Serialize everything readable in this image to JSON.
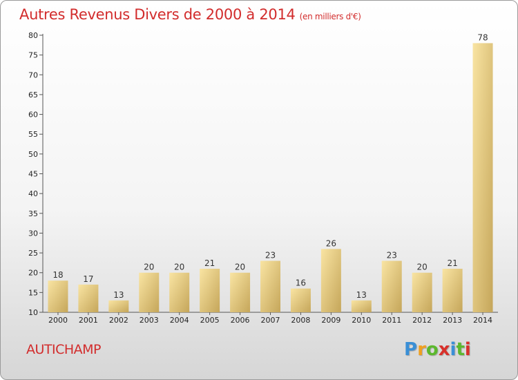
{
  "title": "Autres Revenus Divers de 2000 à 2014",
  "subtitle": "(en milliers d'€)",
  "commune": "AUTICHAMP",
  "logo": {
    "letters": [
      "P",
      "r",
      "o",
      "x",
      "i",
      "t",
      "i"
    ],
    "colors": [
      "#3a8fd6",
      "#f0a020",
      "#5cb82e",
      "#d8302a",
      "#3a8fd6",
      "#5cb82e",
      "#d8302a"
    ]
  },
  "colors": {
    "bar_light": "#f7df9a",
    "bar_dark": "#c9ab5c",
    "title": "#d22c2c"
  },
  "chart_data": {
    "type": "bar",
    "categories": [
      "2000",
      "2001",
      "2002",
      "2003",
      "2004",
      "2005",
      "2006",
      "2007",
      "2008",
      "2009",
      "2010",
      "2011",
      "2012",
      "2013",
      "2014"
    ],
    "values": [
      18,
      17,
      13,
      20,
      20,
      21,
      20,
      23,
      16,
      26,
      13,
      23,
      20,
      21,
      78
    ],
    "title": "Autres Revenus Divers de 2000 à 2014",
    "subtitle": "(en milliers d'€)",
    "xlabel": "",
    "ylabel": "",
    "ylim": [
      10,
      80
    ],
    "yticks": [
      10,
      15,
      20,
      25,
      30,
      35,
      40,
      45,
      50,
      55,
      60,
      65,
      70,
      75,
      80
    ],
    "grid": false,
    "data_labels": true
  }
}
